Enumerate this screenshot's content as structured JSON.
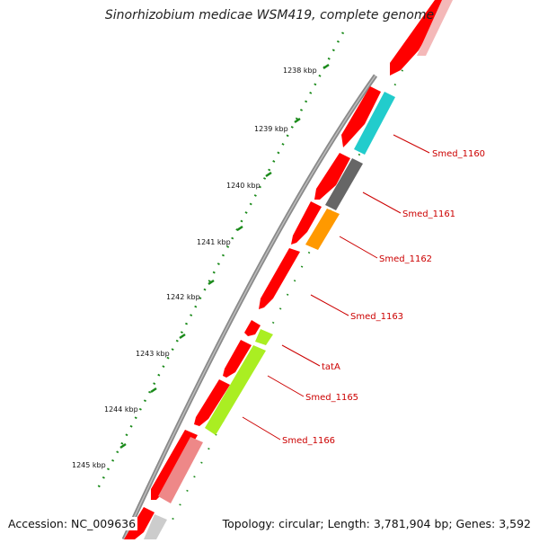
{
  "title": "Sinorhizobium medicae WSM419, complete genome",
  "accession_label": "Accession: NC_009636",
  "summary_label": "Topology: circular; Length: 3,781,904 bp; Genes: 3,592",
  "colors": {
    "background": "#ffffff",
    "backbone": "#8a8a8a",
    "cds": "#ff0000",
    "tick": "#1a8a1a",
    "label": "#cc0000"
  },
  "scale_ticks": [
    "1238 kbp",
    "1239 kbp",
    "1240 kbp",
    "1241 kbp",
    "1242 kbp",
    "1243 kbp",
    "1244 kbp",
    "1245 kbp"
  ],
  "labeled_genes": [
    {
      "name": "Smed_1160",
      "color": "#22cccc"
    },
    {
      "name": "Smed_1161",
      "color": "#666666"
    },
    {
      "name": "Smed_1162",
      "color": "#ff9900"
    },
    {
      "name": "Smed_1163",
      "color": "#ff0000"
    },
    {
      "name": "tatA",
      "color": "#aaee22"
    },
    {
      "name": "Smed_1165",
      "color": "#aaee22"
    },
    {
      "name": "Smed_1166",
      "color": "#ee8888"
    }
  ]
}
